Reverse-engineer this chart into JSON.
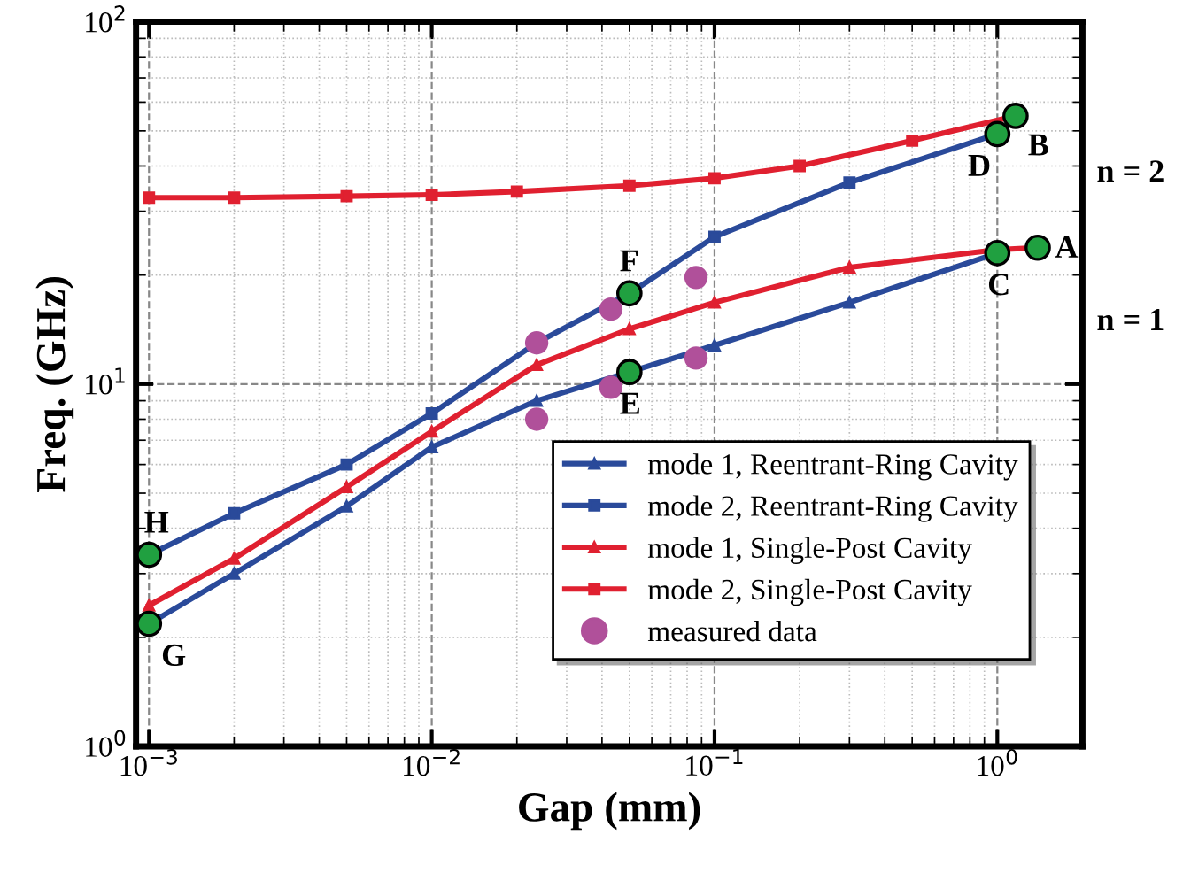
{
  "chart_data": {
    "type": "line",
    "xlabel": "Gap (mm)",
    "ylabel": "Freq. (GHz)",
    "log": "xy",
    "grid": true,
    "legend": "bottom right",
    "line_style": "solid",
    "xlim": [
      0.0009,
      2
    ],
    "ylim": [
      1,
      100
    ],
    "xticks": [
      {
        "value": 0.001,
        "label": "10$^{−3}$"
      },
      {
        "value": 0.01,
        "label": "10$^{−2}$"
      },
      {
        "value": 0.1,
        "label": "10$^{−1}$"
      },
      {
        "value": 1,
        "label": "10$^{0}$"
      }
    ],
    "yticks": [
      {
        "value": 1,
        "label": "10$^{0}$"
      },
      {
        "value": 10,
        "label": "10$^{1}$"
      },
      {
        "value": 100,
        "label": "10$^{2}$"
      }
    ],
    "series": [
      {
        "name": "mode 1, Reentrant-Ring Cavity",
        "color": "#2a4a9a",
        "marker": "triangle",
        "x": [
          0.001,
          0.002,
          0.005,
          0.01,
          0.0235,
          0.05,
          0.1,
          0.3,
          1.0
        ],
        "values": [
          2.18,
          3.0,
          4.6,
          6.7,
          9.0,
          10.8,
          12.8,
          16.8,
          23
        ]
      },
      {
        "name": "mode 2, Reentrant-Ring Cavity",
        "color": "#2a4a9a",
        "marker": "square",
        "x": [
          0.001,
          0.002,
          0.005,
          0.01,
          0.0235,
          0.05,
          0.1,
          0.3,
          1.0
        ],
        "values": [
          3.38,
          4.4,
          6.0,
          8.3,
          13,
          17.8,
          25.5,
          36,
          49
        ]
      },
      {
        "name": "mode 1, Single-Post Cavity",
        "color": "#e02030",
        "marker": "triangle",
        "x": [
          0.001,
          0.002,
          0.005,
          0.01,
          0.0235,
          0.05,
          0.1,
          0.3,
          1.0,
          1.39
        ],
        "values": [
          2.45,
          3.3,
          5.2,
          7.4,
          11.3,
          14.2,
          16.8,
          21,
          23.5,
          23.8
        ]
      },
      {
        "name": "mode 2, Single-Post Cavity",
        "color": "#e02030",
        "marker": "square",
        "x": [
          0.001,
          0.002,
          0.005,
          0.01,
          0.02,
          0.05,
          0.1,
          0.2,
          0.5,
          1.16
        ],
        "values": [
          32.7,
          32.7,
          33,
          33.3,
          34,
          35.3,
          37,
          40,
          47,
          55
        ]
      },
      {
        "name": "measured data",
        "type": "scatter",
        "color": "#b0509a",
        "marker": "circle",
        "x": [
          0.0235,
          0.0235,
          0.043,
          0.043,
          0.086,
          0.086
        ],
        "values": [
          13.0,
          8.0,
          16.1,
          9.8,
          19.7,
          11.8
        ]
      },
      {
        "type": "scatter",
        "color": "#20a040",
        "marker": "circle",
        "x": [
          1.39,
          1.16,
          1.0,
          1.0,
          0.05,
          0.05,
          0.001,
          0.001
        ],
        "values": [
          23.8,
          55,
          23,
          49,
          10.8,
          17.8,
          2.18,
          3.38
        ]
      }
    ],
    "annotations": [
      {
        "text": "A",
        "x": 1.39,
        "y": 23.8
      },
      {
        "text": "B",
        "x": 1.16,
        "y": 55
      },
      {
        "text": "C",
        "x": 1.0,
        "y": 23
      },
      {
        "text": "D",
        "x": 1.0,
        "y": 49
      },
      {
        "text": "E",
        "x": 0.05,
        "y": 10.8
      },
      {
        "text": "F",
        "x": 0.05,
        "y": 17.8
      },
      {
        "text": "G",
        "x": 0.001,
        "y": 2.18
      },
      {
        "text": "H",
        "x": 0.001,
        "y": 3.38
      },
      "n = 2",
      "n = 1"
    ]
  }
}
